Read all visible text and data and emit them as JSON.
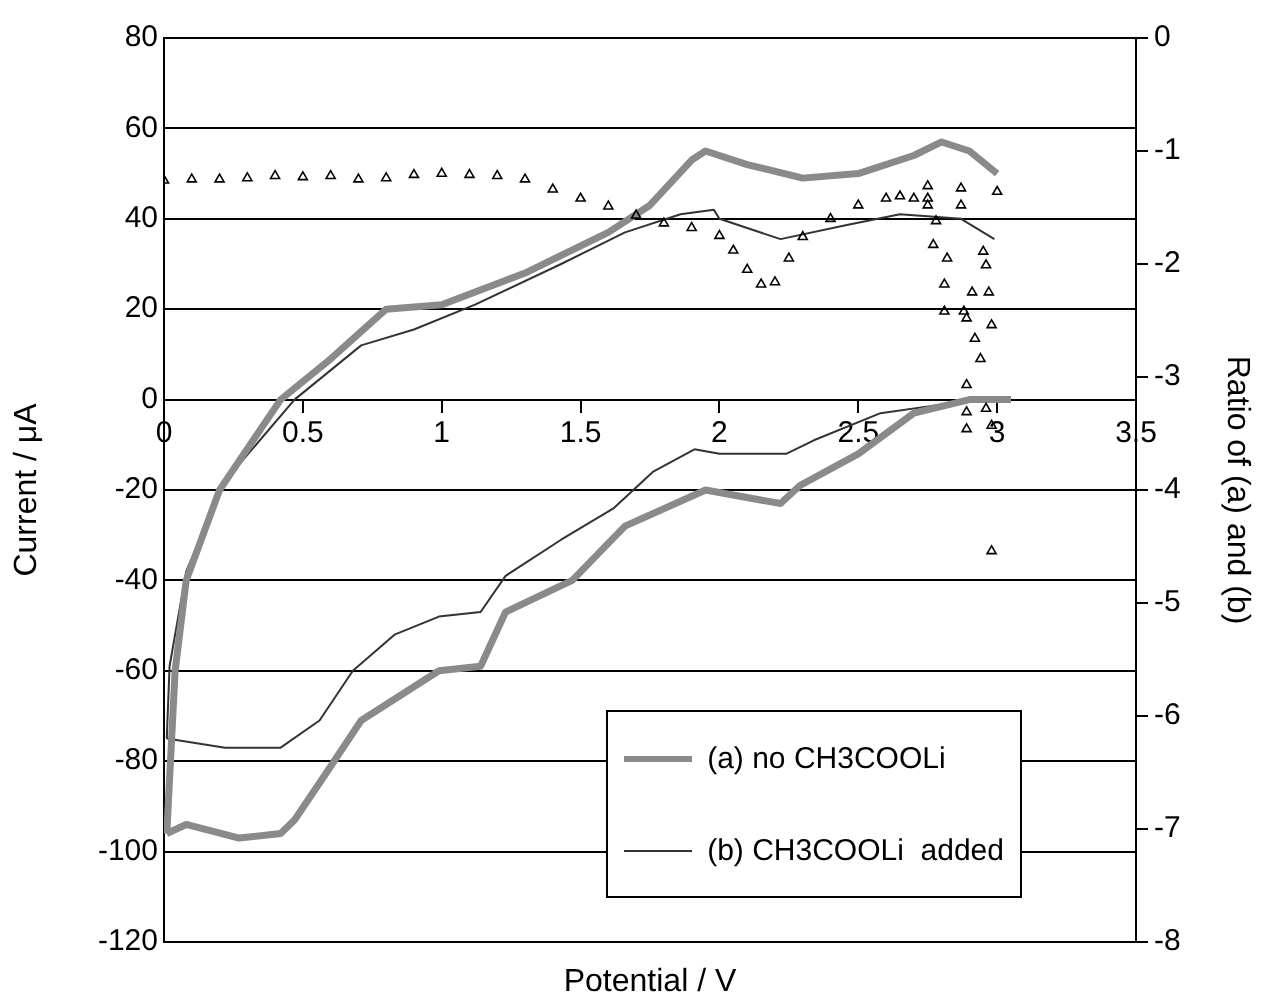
{
  "chart_data": {
    "type": "line",
    "xlabel": "Potential / V",
    "ylabel": "Current / μA",
    "y2label": "Ratio of (a) and (b)",
    "xlim": [
      0,
      3.5
    ],
    "xticks": [
      0,
      0.5,
      1,
      1.5,
      2,
      2.5,
      3,
      3.5
    ],
    "ylim": [
      -120,
      80
    ],
    "yticks": [
      -120,
      -100,
      -80,
      -60,
      -40,
      -20,
      0,
      20,
      40,
      60,
      80
    ],
    "y2lim": [
      -8,
      0
    ],
    "y2ticks": [
      -8,
      -7,
      -6,
      -5,
      -4,
      -3,
      -2,
      -1,
      0
    ],
    "grid": "y",
    "legend": "bottom right",
    "series": [
      {
        "name": "(a) no CH3COOLi",
        "marker": "none",
        "color": "#8a8a8a",
        "x": [
          0.01,
          0.04,
          0.08,
          0.2,
          0.42,
          0.6,
          0.8,
          1.0,
          1.3,
          1.6,
          1.75,
          1.9,
          1.95,
          2.1,
          2.3,
          2.5,
          2.7,
          2.8,
          2.9,
          3.0
        ],
        "values": [
          -96,
          -60,
          -40,
          -20,
          0,
          9,
          20,
          21,
          28,
          37,
          43,
          53,
          55,
          52,
          49,
          50,
          54,
          57,
          55,
          50
        ]
      },
      {
        "marker": "none",
        "color": "#8a8a8a",
        "x": [
          3.05,
          2.9,
          2.7,
          2.5,
          2.29,
          2.22,
          1.95,
          1.66,
          1.47,
          1.23,
          1.14,
          0.99,
          0.71,
          0.58,
          0.47,
          0.42,
          0.27,
          0.08,
          0.01
        ],
        "values": [
          0,
          0,
          -3,
          -12,
          -19,
          -23,
          -20,
          -28,
          -40,
          -47,
          -59,
          -60,
          -71,
          -83,
          -93,
          -96,
          -97,
          -94,
          -96
        ]
      },
      {
        "name": "(b) CH3COOLi  added",
        "marker": "none",
        "color": "#333333",
        "x": [
          0.01,
          0.02,
          0.08,
          0.22,
          0.47,
          0.71,
          0.9,
          1.12,
          1.43,
          1.66,
          1.86,
          1.98,
          2.0,
          2.22,
          2.45,
          2.65,
          2.87,
          2.99
        ],
        "values": [
          -75,
          -59,
          -38,
          -18,
          0,
          12,
          15.5,
          21,
          30,
          37,
          41,
          42,
          40,
          35.5,
          38.5,
          41,
          40,
          35.5
        ]
      },
      {
        "marker": "none",
        "color": "#333333",
        "x": [
          3.0,
          2.81,
          2.58,
          2.34,
          2.24,
          2.0,
          1.91,
          1.76,
          1.62,
          1.43,
          1.23,
          1.14,
          0.99,
          0.83,
          0.68,
          0.56,
          0.42,
          0.22,
          0.01
        ],
        "values": [
          0,
          -1,
          -3,
          -9,
          -12,
          -12,
          -11,
          -16,
          -24,
          -31,
          -39,
          -47,
          -48,
          -52,
          -60,
          -71,
          -77,
          -77,
          -75
        ]
      },
      {
        "type": "scatter",
        "axis": "y2",
        "marker": "triangle",
        "color": "#000000",
        "x": [
          0,
          0.1,
          0.2,
          0.3,
          0.4,
          0.5,
          0.6,
          0.7,
          0.8,
          0.9,
          1.0,
          1.1,
          1.2,
          1.3,
          1.4,
          1.5,
          1.6,
          1.7,
          1.8,
          1.9,
          2.0,
          2.05,
          2.1,
          2.15,
          2.2,
          2.25,
          2.3,
          2.4,
          2.5,
          2.6,
          2.65,
          2.7,
          2.75,
          2.75,
          2.75,
          2.77,
          2.78,
          2.81,
          2.81,
          2.82,
          2.87,
          2.87,
          2.88,
          2.89,
          2.89,
          2.89,
          2.89,
          2.91,
          2.92,
          2.94,
          2.95,
          2.96,
          2.96,
          2.97,
          2.98,
          2.98,
          2.98,
          3.0
        ],
        "values": [
          -1.26,
          -1.25,
          -1.25,
          -1.24,
          -1.22,
          -1.23,
          -1.22,
          -1.25,
          -1.24,
          -1.21,
          -1.2,
          -1.21,
          -1.22,
          -1.25,
          -1.34,
          -1.42,
          -1.49,
          -1.57,
          -1.64,
          -1.68,
          -1.75,
          -1.88,
          -2.05,
          -2.18,
          -2.16,
          -1.95,
          -1.76,
          -1.6,
          -1.48,
          -1.42,
          -1.4,
          -1.42,
          -1.48,
          -1.31,
          -1.42,
          -1.83,
          -1.62,
          -2.18,
          -2.42,
          -1.95,
          -1.33,
          -1.48,
          -2.42,
          -2.48,
          -3.07,
          -3.31,
          -3.46,
          -2.25,
          -2.66,
          -2.84,
          -1.89,
          -2.01,
          -3.28,
          -2.25,
          -2.54,
          -3.43,
          -4.54,
          -1.36
        ]
      }
    ]
  }
}
